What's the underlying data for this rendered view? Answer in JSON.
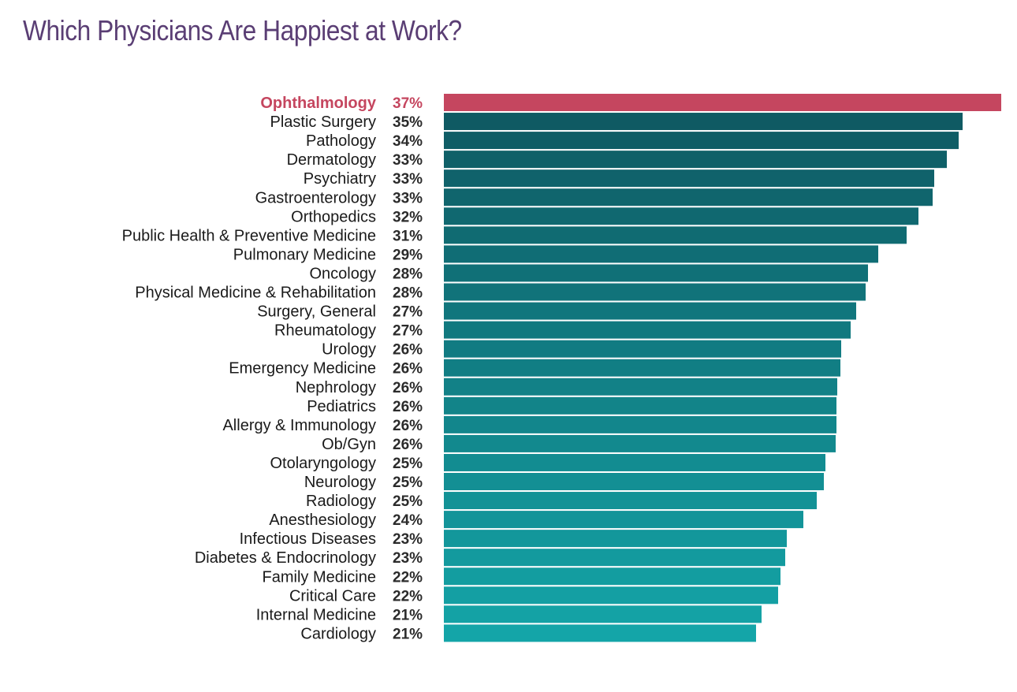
{
  "chart_data": {
    "type": "bar",
    "orientation": "horizontal",
    "title": "Which Physicians Are Happiest at Work?",
    "xlabel": "",
    "ylabel": "",
    "xlim": [
      0,
      37
    ],
    "grid": false,
    "legend": "none",
    "value_suffix": "%",
    "categories": [
      "Ophthalmology",
      "Plastic Surgery",
      "Pathology",
      "Dermatology",
      "Psychiatry",
      "Gastroenterology",
      "Orthopedics",
      "Public Health & Preventive Medicine",
      "Pulmonary Medicine",
      "Oncology",
      "Physical Medicine & Rehabilitation",
      "Surgery, General",
      "Rheumatology",
      "Urology",
      "Emergency Medicine",
      "Nephrology",
      "Pediatrics",
      "Allergy & Immunology",
      "Ob/Gyn",
      "Otolaryngology",
      "Neurology",
      "Radiology",
      "Anesthesiology",
      "Infectious Diseases",
      "Diabetes & Endocrinology",
      "Family Medicine",
      "Critical Care",
      "Internal Medicine",
      "Cardiology"
    ],
    "values": [
      37,
      35,
      34,
      33,
      33,
      33,
      32,
      31,
      29,
      28,
      28,
      27,
      27,
      26,
      26,
      26,
      26,
      26,
      26,
      25,
      25,
      25,
      24,
      23,
      23,
      22,
      22,
      21,
      21
    ],
    "highlight_index": 0,
    "colors": {
      "highlight": "#c5465f",
      "gradient_start": "#0f5a63",
      "gradient_end": "#14a5a8",
      "title": "#5a3e74"
    }
  }
}
